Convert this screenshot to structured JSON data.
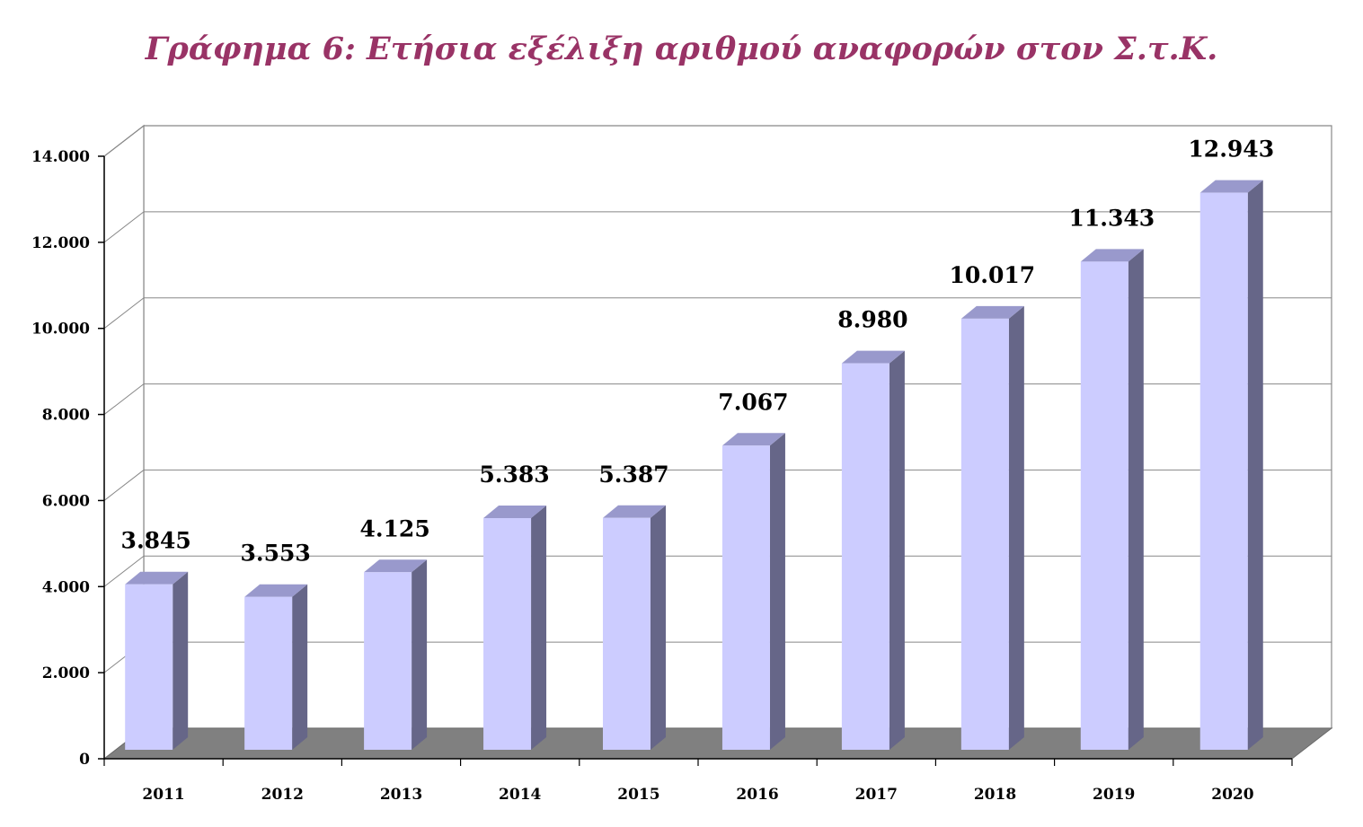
{
  "chart_data": {
    "type": "bar",
    "title": "Γράφημα 6: Ετήσια εξέλιξη αριθμού αναφορών στον Σ.τ.Κ.",
    "categories": [
      "2011",
      "2012",
      "2013",
      "2014",
      "2015",
      "2016",
      "2017",
      "2018",
      "2019",
      "2020"
    ],
    "values": [
      3845,
      3553,
      4125,
      5383,
      5387,
      7067,
      8980,
      10017,
      11343,
      12943
    ],
    "value_labels": [
      "3.845",
      "3.553",
      "4.125",
      "5.383",
      "5.387",
      "7.067",
      "8.980",
      "10.017",
      "11.343",
      "12.943"
    ],
    "ylim": [
      0,
      14000
    ],
    "yticks": [
      0,
      2000,
      4000,
      6000,
      8000,
      10000,
      12000,
      14000
    ],
    "ytick_labels": [
      "0",
      "2.000",
      "4.000",
      "6.000",
      "8.000",
      "10.000",
      "12.000",
      "14.000"
    ],
    "xlabel": "",
    "ylabel": "",
    "grid": true,
    "legend": "none",
    "style": "3d-column",
    "colors": {
      "title": "#993366",
      "bar_front": "#ccccff",
      "bar_side": "#666688",
      "bar_top": "#9999cc",
      "floor": "#808080",
      "gridline": "#888888"
    }
  }
}
